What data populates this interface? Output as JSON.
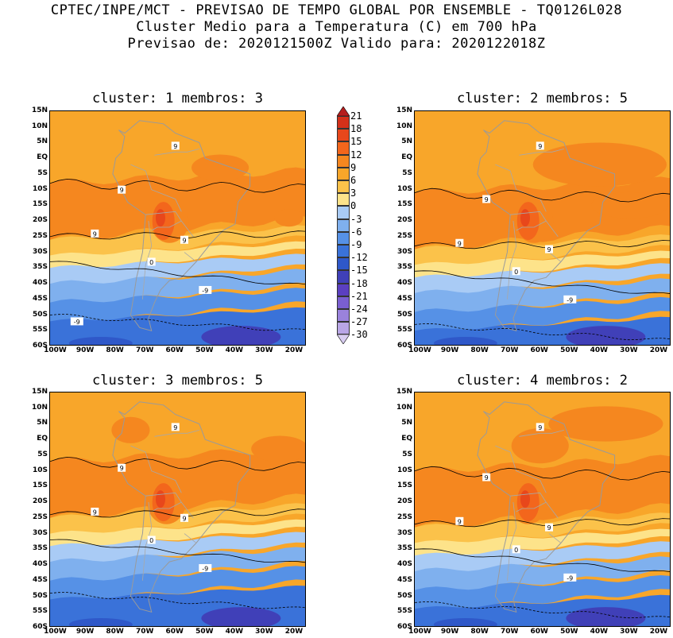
{
  "header": {
    "line1": "CPTEC/INPE/MCT - PREVISAO DE TEMPO GLOBAL POR ENSEMBLE - TQ0126L028",
    "line2": "Cluster Medio para a Temperatura (C) em 700 hPa",
    "line3": "Previsao de: 2020121500Z   Valido para: 2020122018Z"
  },
  "panels": [
    {
      "title": "cluster: 1  membros: 3"
    },
    {
      "title": "cluster: 2  membros: 5"
    },
    {
      "title": "cluster: 3  membros: 5"
    },
    {
      "title": "cluster: 4  membros: 2"
    }
  ],
  "axes": {
    "lat_labels": [
      "15N",
      "10N",
      "5N",
      "EQ",
      "5S",
      "10S",
      "15S",
      "20S",
      "25S",
      "30S",
      "35S",
      "40S",
      "45S",
      "50S",
      "55S",
      "60S"
    ],
    "lon_labels": [
      "100W",
      "90W",
      "80W",
      "70W",
      "60W",
      "50W",
      "40W",
      "30W",
      "20W"
    ]
  },
  "colorbar": {
    "labels": [
      "21",
      "18",
      "15",
      "12",
      "9",
      "6",
      "3",
      "0",
      "-3",
      "-6",
      "-9",
      "-12",
      "-15",
      "-18",
      "-21",
      "-24",
      "-27",
      "-30"
    ],
    "colors": [
      "#b51e1e",
      "#d4301a",
      "#e8471b",
      "#f3661c",
      "#f5871f",
      "#f8a62a",
      "#fbc24a",
      "#fde38a",
      "#a9cbf5",
      "#7fb0ee",
      "#5691e6",
      "#3a72d9",
      "#2f58c9",
      "#4040b8",
      "#5b3fc0",
      "#7a5fd0",
      "#9a82dc",
      "#b9a6e6",
      "#d8cdf0"
    ]
  },
  "contour_labels": {
    "warm": "9",
    "freezing": "0",
    "cold": "-9"
  }
}
